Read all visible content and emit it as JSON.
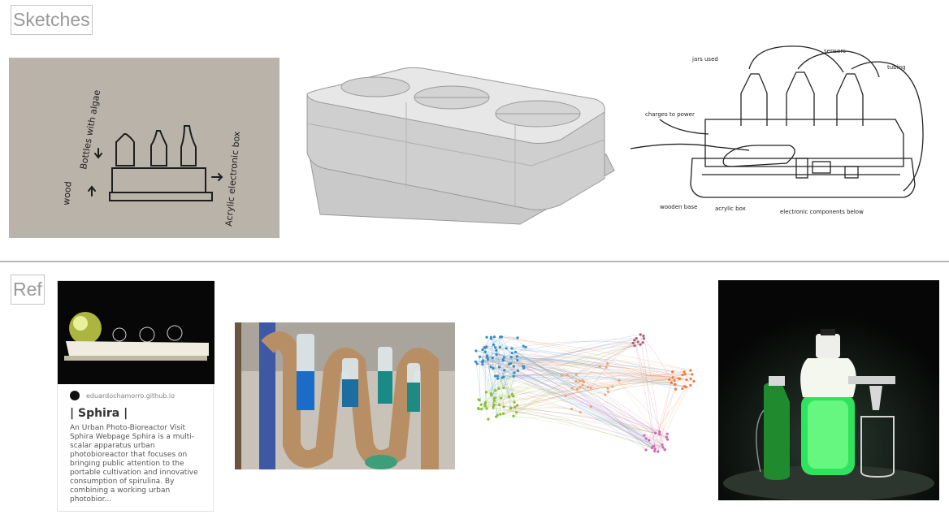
{
  "sections": {
    "sketches_label": "Sketches",
    "ref_label": "Ref"
  },
  "sketch_notes": {
    "bottles": "Bottles with algae",
    "wood": "wood",
    "box": "Acrylic electronic box",
    "jars": "jars used",
    "sensors": "sensors",
    "tubing": "tubing",
    "charges": "charges to power",
    "wooden_base": "wooden base",
    "acrylic_box": "acrylic box",
    "electronic": "electronic components below"
  },
  "link_preview": {
    "source": "eduardochamorro.github.io",
    "title": "| Sphira |",
    "description": "An Urban Photo-Bioreactor Visit Sphira Webpage Sphira is a multi-scalar apparatus urban photobioreactor that focuses on bringing public attention to the portable cultivation and innovative consumption of spirulina. By combining a working urban photobior..."
  },
  "icons": {
    "favicon": "site-favicon-icon"
  }
}
